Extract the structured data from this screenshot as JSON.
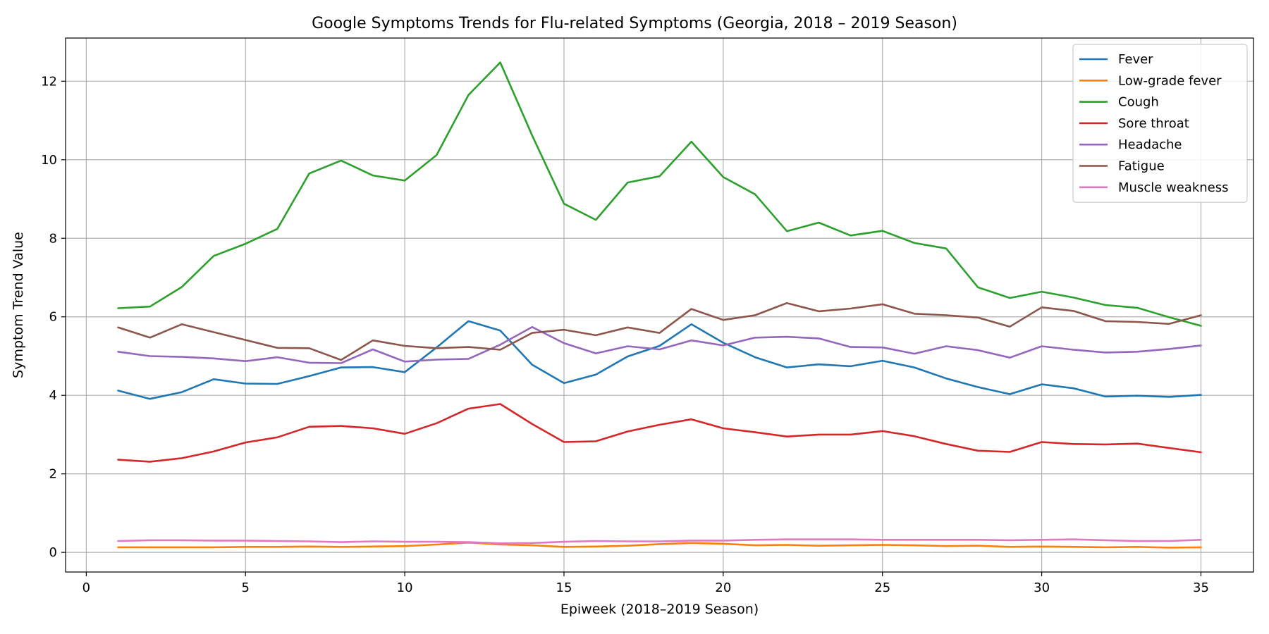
{
  "chart_data": {
    "type": "line",
    "title": "Google Symptoms Trends for Flu-related Symptoms (Georgia, 2018 – 2019 Season)",
    "xlabel": "Epiweek (2018–2019 Season)",
    "ylabel": "Symptom Trend Value",
    "xlim": [
      -0.65,
      36.65
    ],
    "ylim": [
      -0.5,
      13.1
    ],
    "x_ticks": [
      0,
      5,
      10,
      15,
      20,
      25,
      30,
      35
    ],
    "y_ticks": [
      0,
      2,
      4,
      6,
      8,
      10,
      12
    ],
    "grid": true,
    "legend_position": "top-right",
    "x": [
      1,
      2,
      3,
      4,
      5,
      6,
      7,
      8,
      9,
      10,
      11,
      12,
      13,
      14,
      15,
      16,
      17,
      18,
      19,
      20,
      21,
      22,
      23,
      24,
      25,
      26,
      27,
      28,
      29,
      30,
      31,
      32,
      33,
      34,
      35
    ],
    "series": [
      {
        "name": "Fever",
        "color": "#1f77b4",
        "values": [
          4.12,
          3.91,
          4.08,
          4.41,
          4.3,
          4.29,
          4.49,
          4.71,
          4.72,
          4.59,
          5.22,
          5.89,
          5.65,
          4.78,
          4.31,
          4.53,
          4.99,
          5.26,
          5.81,
          5.34,
          4.97,
          4.71,
          4.79,
          4.74,
          4.88,
          4.71,
          4.43,
          4.21,
          4.03,
          4.28,
          4.18,
          3.97,
          3.99,
          3.96,
          4.01
        ]
      },
      {
        "name": "Low-grade fever",
        "color": "#ff7f0e",
        "values": [
          0.13,
          0.13,
          0.13,
          0.13,
          0.14,
          0.14,
          0.15,
          0.14,
          0.15,
          0.16,
          0.2,
          0.25,
          0.2,
          0.18,
          0.14,
          0.15,
          0.17,
          0.21,
          0.24,
          0.22,
          0.18,
          0.19,
          0.17,
          0.18,
          0.19,
          0.18,
          0.16,
          0.17,
          0.14,
          0.15,
          0.14,
          0.13,
          0.14,
          0.12,
          0.13
        ]
      },
      {
        "name": "Cough",
        "color": "#2ca02c",
        "values": [
          6.22,
          6.26,
          6.76,
          7.55,
          7.86,
          8.24,
          9.65,
          9.98,
          9.6,
          9.47,
          10.12,
          11.65,
          12.48,
          10.62,
          8.88,
          8.47,
          9.42,
          9.58,
          10.46,
          9.56,
          9.12,
          8.18,
          8.4,
          8.07,
          8.19,
          7.88,
          7.74,
          6.75,
          6.48,
          6.64,
          6.49,
          6.3,
          6.23,
          5.99,
          5.77
        ]
      },
      {
        "name": "Sore throat",
        "color": "#d62728",
        "values": [
          2.36,
          2.31,
          2.4,
          2.57,
          2.8,
          2.93,
          3.2,
          3.22,
          3.16,
          3.02,
          3.29,
          3.66,
          3.78,
          3.27,
          2.81,
          2.83,
          3.08,
          3.25,
          3.39,
          3.16,
          3.06,
          2.95,
          3.0,
          3.0,
          3.09,
          2.96,
          2.76,
          2.59,
          2.56,
          2.81,
          2.76,
          2.75,
          2.77,
          2.66,
          2.55
        ]
      },
      {
        "name": "Headache",
        "color": "#9467bd",
        "values": [
          5.11,
          5.0,
          4.98,
          4.94,
          4.87,
          4.97,
          4.83,
          4.82,
          5.17,
          4.86,
          4.91,
          4.93,
          5.29,
          5.74,
          5.33,
          5.07,
          5.25,
          5.17,
          5.4,
          5.27,
          5.47,
          5.49,
          5.45,
          5.23,
          5.22,
          5.06,
          5.25,
          5.15,
          4.96,
          5.25,
          5.16,
          5.09,
          5.11,
          5.18,
          5.27
        ]
      },
      {
        "name": "Fatigue",
        "color": "#8c564b",
        "values": [
          5.73,
          5.47,
          5.81,
          5.61,
          5.41,
          5.21,
          5.2,
          4.9,
          5.4,
          5.26,
          5.2,
          5.23,
          5.16,
          5.59,
          5.67,
          5.53,
          5.73,
          5.59,
          6.2,
          5.92,
          6.04,
          6.35,
          6.14,
          6.21,
          6.32,
          6.08,
          6.04,
          5.98,
          5.75,
          6.24,
          6.15,
          5.89,
          5.87,
          5.82,
          6.04
        ]
      },
      {
        "name": "Muscle weakness",
        "color": "#e377c2",
        "values": [
          0.29,
          0.31,
          0.31,
          0.3,
          0.3,
          0.29,
          0.28,
          0.26,
          0.28,
          0.27,
          0.27,
          0.26,
          0.23,
          0.24,
          0.27,
          0.29,
          0.28,
          0.28,
          0.3,
          0.3,
          0.32,
          0.33,
          0.33,
          0.33,
          0.32,
          0.32,
          0.32,
          0.32,
          0.31,
          0.32,
          0.33,
          0.31,
          0.29,
          0.29,
          0.32
        ]
      }
    ]
  }
}
